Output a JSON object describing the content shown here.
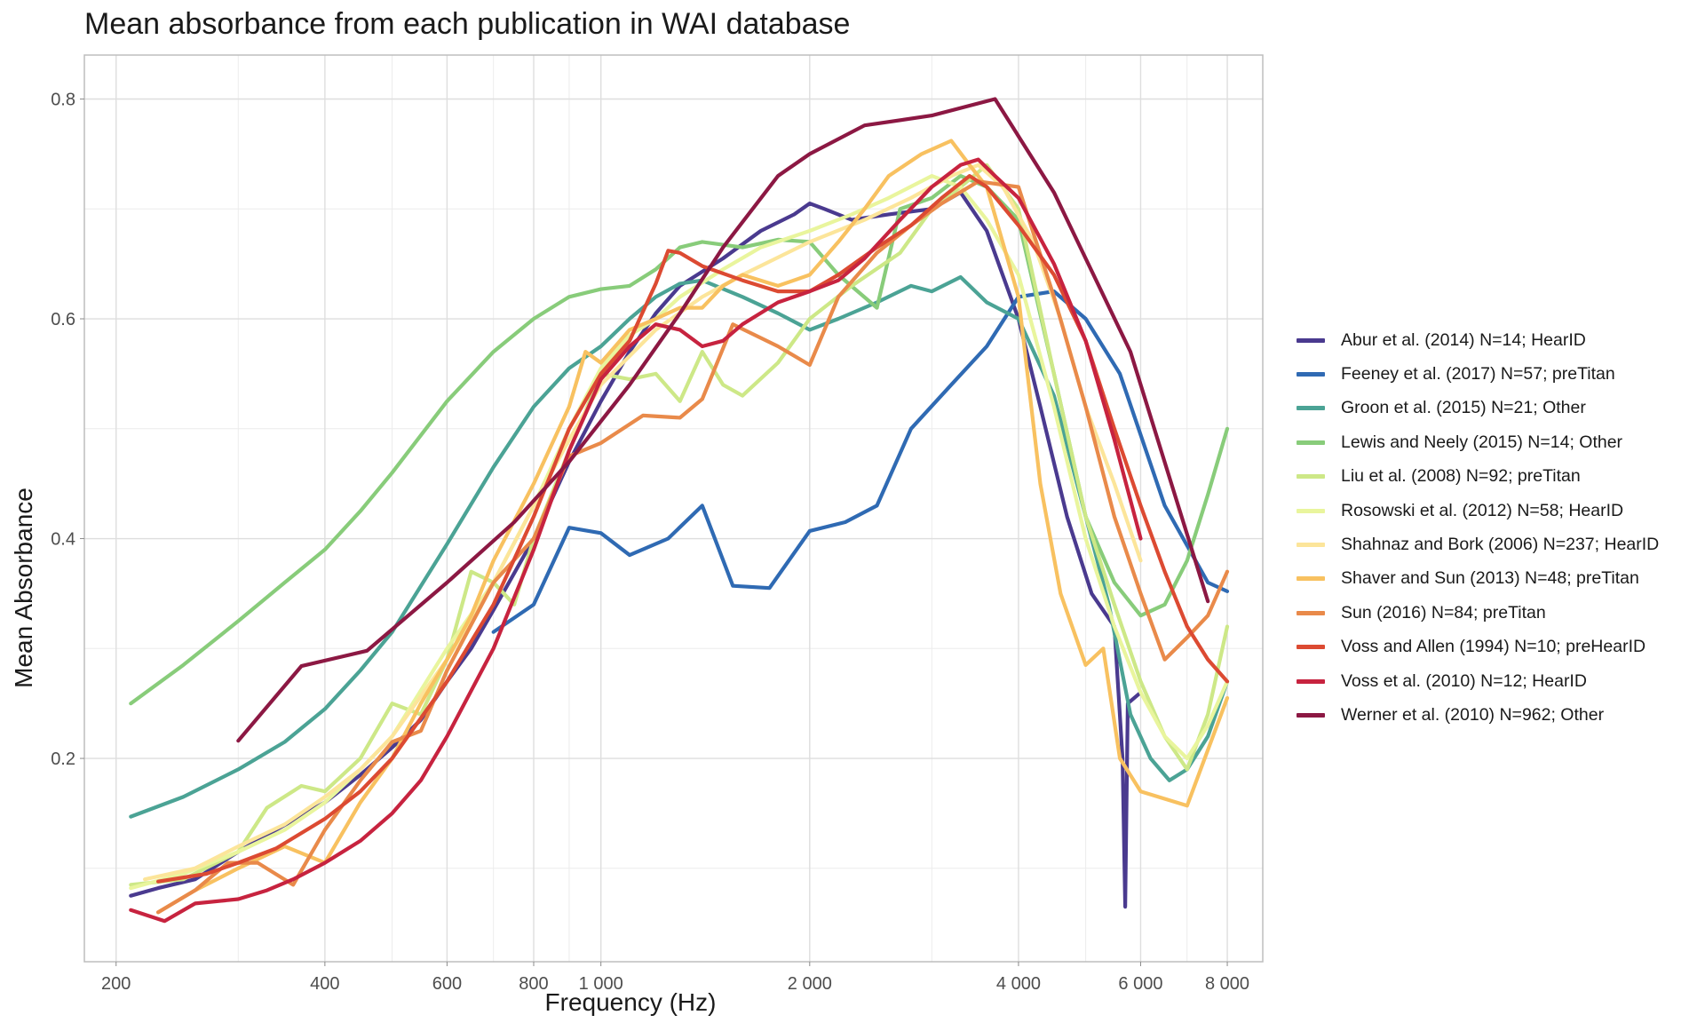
{
  "chart_data": {
    "type": "line",
    "title": "Mean absorbance from each publication in WAI database",
    "xlabel": "Frequency (Hz)",
    "ylabel": "Mean Absorbance",
    "xscale": "log",
    "xlim": [
      180,
      9000
    ],
    "ylim": [
      0.015,
      0.84
    ],
    "x_ticks": [
      200,
      400,
      600,
      800,
      1000,
      2000,
      4000,
      6000,
      8000
    ],
    "x_tick_labels": [
      "200",
      "400",
      "600",
      "800",
      "1 000",
      "2 000",
      "4 000",
      "6 000",
      "8 000"
    ],
    "y_ticks": [
      0.2,
      0.4,
      0.6,
      0.8
    ],
    "y_tick_labels": [
      "0.2",
      "0.4",
      "0.6",
      "0.8"
    ],
    "grid": true,
    "legend_position": "right",
    "series": [
      {
        "name": "Abur et al. (2014) N=14; HearID",
        "color": "#4a3a8f",
        "x": [
          210,
          230,
          260,
          300,
          340,
          400,
          450,
          500,
          550,
          600,
          650,
          700,
          800,
          900,
          1000,
          1100,
          1200,
          1300,
          1500,
          1700,
          1900,
          2000,
          2100,
          2300,
          2600,
          3000,
          3300,
          3600,
          4000,
          4300,
          4700,
          5100,
          5500,
          5650,
          5700,
          5750,
          6000
        ],
        "y": [
          0.075,
          0.082,
          0.09,
          0.115,
          0.135,
          0.16,
          0.185,
          0.21,
          0.235,
          0.27,
          0.3,
          0.335,
          0.4,
          0.47,
          0.525,
          0.57,
          0.605,
          0.63,
          0.655,
          0.68,
          0.695,
          0.705,
          0.7,
          0.69,
          0.695,
          0.7,
          0.715,
          0.68,
          0.6,
          0.52,
          0.42,
          0.35,
          0.32,
          0.2,
          0.065,
          0.25,
          0.26
        ]
      },
      {
        "name": "Feeney et al. (2017) N=57; preTitan",
        "color": "#2f6ab3",
        "x": [
          700,
          800,
          900,
          1000,
          1100,
          1250,
          1400,
          1550,
          1750,
          2000,
          2250,
          2500,
          2800,
          3200,
          3600,
          4000,
          4500,
          5000,
          5600,
          6500,
          7500,
          8000
        ],
        "y": [
          0.315,
          0.34,
          0.41,
          0.405,
          0.385,
          0.4,
          0.43,
          0.357,
          0.355,
          0.407,
          0.415,
          0.43,
          0.5,
          0.54,
          0.575,
          0.62,
          0.625,
          0.6,
          0.55,
          0.43,
          0.36,
          0.352
        ]
      },
      {
        "name": "Groon et al. (2015) N=21; Other",
        "color": "#4ba395",
        "x": [
          210,
          250,
          300,
          350,
          400,
          450,
          500,
          600,
          700,
          800,
          900,
          1000,
          1100,
          1200,
          1300,
          1400,
          1600,
          1800,
          2000,
          2200,
          2500,
          2800,
          3000,
          3300,
          3600,
          4000,
          4500,
          5000,
          5400,
          5800,
          6200,
          6600,
          7000,
          7500,
          8000
        ],
        "y": [
          0.147,
          0.165,
          0.19,
          0.215,
          0.245,
          0.28,
          0.315,
          0.395,
          0.465,
          0.52,
          0.555,
          0.575,
          0.6,
          0.62,
          0.632,
          0.635,
          0.62,
          0.605,
          0.59,
          0.6,
          0.615,
          0.63,
          0.625,
          0.638,
          0.615,
          0.6,
          0.53,
          0.42,
          0.34,
          0.24,
          0.2,
          0.18,
          0.19,
          0.22,
          0.27
        ]
      },
      {
        "name": "Lewis and Neely (2015) N=14; Other",
        "color": "#88cc7a",
        "x": [
          210,
          250,
          300,
          350,
          400,
          450,
          500,
          600,
          700,
          800,
          900,
          1000,
          1100,
          1200,
          1300,
          1400,
          1600,
          1800,
          2000,
          2200,
          2500,
          2700,
          3000,
          3300,
          3600,
          4000,
          4500,
          5000,
          5500,
          6000,
          6500,
          7000,
          7500,
          8000
        ],
        "y": [
          0.25,
          0.285,
          0.325,
          0.36,
          0.39,
          0.425,
          0.46,
          0.525,
          0.57,
          0.6,
          0.62,
          0.627,
          0.63,
          0.645,
          0.665,
          0.67,
          0.665,
          0.672,
          0.67,
          0.64,
          0.61,
          0.7,
          0.71,
          0.73,
          0.72,
          0.69,
          0.55,
          0.42,
          0.36,
          0.33,
          0.34,
          0.38,
          0.44,
          0.5
        ]
      },
      {
        "name": "Liu et al. (2008) N=92; preTitan",
        "color": "#cde887",
        "x": [
          210,
          250,
          300,
          330,
          370,
          400,
          450,
          500,
          550,
          600,
          650,
          700,
          750,
          800,
          900,
          1000,
          1100,
          1200,
          1300,
          1400,
          1500,
          1600,
          1800,
          2000,
          2300,
          2700,
          3000,
          3300,
          3600,
          4000,
          4500,
          5000,
          5500,
          6000,
          6500,
          7000,
          7500,
          8000
        ],
        "y": [
          0.085,
          0.09,
          0.115,
          0.155,
          0.175,
          0.17,
          0.2,
          0.25,
          0.24,
          0.29,
          0.37,
          0.36,
          0.34,
          0.4,
          0.48,
          0.55,
          0.545,
          0.55,
          0.525,
          0.57,
          0.54,
          0.53,
          0.56,
          0.6,
          0.63,
          0.66,
          0.7,
          0.72,
          0.74,
          0.7,
          0.55,
          0.42,
          0.34,
          0.27,
          0.22,
          0.19,
          0.24,
          0.32
        ]
      },
      {
        "name": "Rosowski et al. (2012) N=58; HearID",
        "color": "#e9f59d",
        "x": [
          210,
          250,
          300,
          350,
          400,
          450,
          500,
          600,
          700,
          800,
          900,
          1000,
          1100,
          1200,
          1300,
          1500,
          1700,
          2000,
          2300,
          2600,
          3000,
          3300,
          3600,
          4000,
          4500,
          5000,
          5500,
          6000,
          6500,
          7000,
          7500,
          8000
        ],
        "y": [
          0.082,
          0.095,
          0.115,
          0.135,
          0.16,
          0.19,
          0.22,
          0.3,
          0.36,
          0.43,
          0.5,
          0.555,
          0.585,
          0.6,
          0.62,
          0.645,
          0.665,
          0.68,
          0.695,
          0.71,
          0.73,
          0.72,
          0.69,
          0.64,
          0.52,
          0.4,
          0.32,
          0.26,
          0.22,
          0.2,
          0.23,
          0.27
        ]
      },
      {
        "name": "Shahnaz and Bork (2006) N=237; HearID",
        "color": "#fce59a",
        "x": [
          220,
          260,
          300,
          350,
          400,
          450,
          500,
          600,
          700,
          800,
          900,
          1000,
          1200,
          1400,
          1600,
          2000,
          2400,
          2800,
          3200,
          3500,
          3800,
          4200,
          4600,
          5000,
          5500,
          6000
        ],
        "y": [
          0.09,
          0.1,
          0.12,
          0.14,
          0.165,
          0.19,
          0.22,
          0.29,
          0.36,
          0.43,
          0.49,
          0.54,
          0.59,
          0.62,
          0.64,
          0.67,
          0.69,
          0.71,
          0.73,
          0.74,
          0.72,
          0.67,
          0.6,
          0.52,
          0.45,
          0.38
        ]
      },
      {
        "name": "Shaver and Sun (2013) N=48; preTitan",
        "color": "#f8c160",
        "x": [
          230,
          260,
          300,
          350,
          400,
          450,
          500,
          550,
          600,
          650,
          700,
          800,
          900,
          950,
          1000,
          1100,
          1200,
          1300,
          1400,
          1500,
          1600,
          1800,
          2000,
          2200,
          2400,
          2600,
          2900,
          3200,
          3400,
          3600,
          4000,
          4300,
          4600,
          5000,
          5300,
          5600,
          6000,
          7000,
          8000
        ],
        "y": [
          0.06,
          0.08,
          0.1,
          0.12,
          0.105,
          0.16,
          0.2,
          0.25,
          0.29,
          0.33,
          0.38,
          0.45,
          0.52,
          0.57,
          0.56,
          0.59,
          0.6,
          0.61,
          0.61,
          0.63,
          0.64,
          0.63,
          0.64,
          0.67,
          0.7,
          0.73,
          0.75,
          0.762,
          0.74,
          0.72,
          0.62,
          0.45,
          0.35,
          0.285,
          0.3,
          0.2,
          0.17,
          0.157,
          0.255
        ]
      },
      {
        "name": "Sun (2016) N=84; preTitan",
        "color": "#e98a4a",
        "x": [
          230,
          260,
          290,
          320,
          360,
          400,
          450,
          500,
          550,
          600,
          700,
          800,
          900,
          1000,
          1150,
          1300,
          1400,
          1550,
          1800,
          2000,
          2200,
          2500,
          2800,
          3100,
          3500,
          4000,
          4500,
          5000,
          5500,
          6000,
          6500,
          7000,
          7500,
          8000
        ],
        "y": [
          0.06,
          0.08,
          0.105,
          0.105,
          0.085,
          0.135,
          0.18,
          0.215,
          0.225,
          0.28,
          0.36,
          0.4,
          0.475,
          0.487,
          0.512,
          0.51,
          0.527,
          0.595,
          0.575,
          0.558,
          0.62,
          0.66,
          0.685,
          0.705,
          0.725,
          0.72,
          0.62,
          0.52,
          0.42,
          0.35,
          0.29,
          0.31,
          0.33,
          0.37
        ]
      },
      {
        "name": "Voss and Allen (1994) N=10; preHearID",
        "color": "#dc4a32",
        "x": [
          230,
          270,
          300,
          340,
          400,
          450,
          500,
          600,
          700,
          800,
          900,
          1000,
          1100,
          1200,
          1250,
          1300,
          1400,
          1600,
          1800,
          2000,
          2200,
          2500,
          2800,
          3100,
          3400,
          3600,
          4000,
          4500,
          5000,
          5500,
          6000,
          6500,
          7000,
          7500,
          8000
        ],
        "y": [
          0.088,
          0.095,
          0.105,
          0.118,
          0.145,
          0.17,
          0.2,
          0.27,
          0.34,
          0.42,
          0.5,
          0.55,
          0.58,
          0.632,
          0.662,
          0.66,
          0.648,
          0.635,
          0.625,
          0.625,
          0.64,
          0.665,
          0.685,
          0.71,
          0.73,
          0.72,
          0.685,
          0.64,
          0.58,
          0.5,
          0.43,
          0.37,
          0.32,
          0.29,
          0.27
        ]
      },
      {
        "name": "Voss et al. (2010) N=12; HearID",
        "color": "#c7233f",
        "x": [
          210,
          235,
          260,
          300,
          330,
          360,
          400,
          450,
          500,
          550,
          600,
          700,
          800,
          900,
          1000,
          1100,
          1200,
          1300,
          1400,
          1500,
          1600,
          1800,
          2000,
          2200,
          2400,
          2700,
          3000,
          3300,
          3500,
          3700,
          4000,
          4500,
          5000,
          5500,
          6000
        ],
        "y": [
          0.062,
          0.052,
          0.068,
          0.072,
          0.08,
          0.09,
          0.105,
          0.125,
          0.15,
          0.18,
          0.22,
          0.3,
          0.39,
          0.48,
          0.545,
          0.575,
          0.595,
          0.59,
          0.575,
          0.58,
          0.595,
          0.615,
          0.625,
          0.635,
          0.655,
          0.69,
          0.72,
          0.74,
          0.745,
          0.73,
          0.71,
          0.65,
          0.58,
          0.49,
          0.4
        ]
      },
      {
        "name": "Werner et al. (2010) N=962; Other",
        "color": "#8c1843",
        "x": [
          300,
          370,
          460,
          600,
          750,
          900,
          1100,
          1300,
          1500,
          1800,
          2000,
          2400,
          3000,
          3700,
          4500,
          5800,
          7500
        ],
        "y": [
          0.216,
          0.284,
          0.298,
          0.36,
          0.415,
          0.47,
          0.54,
          0.605,
          0.665,
          0.73,
          0.75,
          0.776,
          0.785,
          0.8,
          0.715,
          0.57,
          0.343
        ]
      }
    ]
  }
}
